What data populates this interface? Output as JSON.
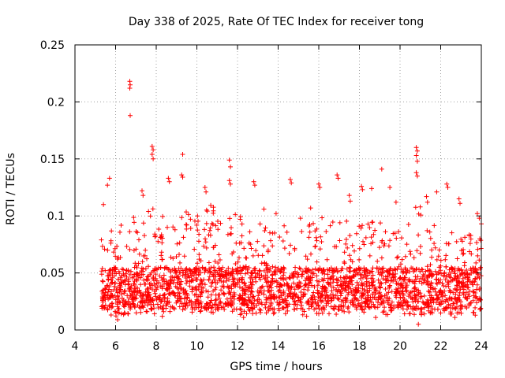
{
  "chart_data": {
    "type": "scatter",
    "title": "Day 338 of 2025, Rate Of TEC Index for receiver tong",
    "xlabel": "GPS time / hours",
    "ylabel": "ROTI / TECUs",
    "xlim": [
      4,
      24
    ],
    "ylim": [
      0,
      0.25
    ],
    "xticks": [
      4,
      6,
      8,
      10,
      12,
      14,
      16,
      18,
      20,
      22,
      24
    ],
    "yticks": [
      0,
      0.05,
      0.1,
      0.15,
      0.2,
      0.25
    ],
    "xtick_labels": [
      "4",
      "6",
      "8",
      "10",
      "12",
      "14",
      "16",
      "18",
      "20",
      "22",
      "24"
    ],
    "ytick_labels": [
      "0",
      "0.05",
      "0.1",
      "0.15",
      "0.2",
      "0.25"
    ],
    "grid": true,
    "marker": "+",
    "color": "#ff0000",
    "data_range_x": [
      5.3,
      24.0
    ],
    "series": [
      {
        "name": "ROTI",
        "points": [
          [
            6.7,
            0.218
          ],
          [
            6.72,
            0.215
          ],
          [
            6.7,
            0.212
          ],
          [
            6.72,
            0.188
          ],
          [
            7.8,
            0.161
          ],
          [
            7.85,
            0.158
          ],
          [
            7.8,
            0.154
          ],
          [
            7.85,
            0.15
          ],
          [
            9.3,
            0.154
          ],
          [
            9.25,
            0.136
          ],
          [
            9.3,
            0.134
          ],
          [
            11.6,
            0.149
          ],
          [
            11.65,
            0.143
          ],
          [
            11.6,
            0.131
          ],
          [
            11.65,
            0.128
          ],
          [
            20.8,
            0.16
          ],
          [
            20.85,
            0.157
          ],
          [
            20.8,
            0.153
          ],
          [
            20.85,
            0.148
          ],
          [
            20.8,
            0.138
          ],
          [
            20.85,
            0.135
          ],
          [
            19.1,
            0.141
          ],
          [
            5.7,
            0.133
          ],
          [
            5.6,
            0.127
          ],
          [
            8.6,
            0.133
          ],
          [
            8.65,
            0.13
          ],
          [
            12.8,
            0.13
          ],
          [
            12.85,
            0.127
          ],
          [
            14.6,
            0.132
          ],
          [
            14.65,
            0.129
          ],
          [
            16.0,
            0.128
          ],
          [
            16.05,
            0.125
          ],
          [
            16.9,
            0.136
          ],
          [
            16.95,
            0.133
          ],
          [
            18.1,
            0.126
          ],
          [
            18.15,
            0.123
          ],
          [
            18.6,
            0.124
          ],
          [
            19.5,
            0.125
          ],
          [
            21.8,
            0.121
          ],
          [
            22.3,
            0.128
          ],
          [
            22.35,
            0.125
          ],
          [
            22.9,
            0.115
          ],
          [
            22.95,
            0.111
          ],
          [
            23.8,
            0.102
          ],
          [
            23.9,
            0.098
          ],
          [
            7.3,
            0.122
          ],
          [
            7.35,
            0.118
          ],
          [
            10.4,
            0.125
          ],
          [
            10.45,
            0.121
          ],
          [
            13.3,
            0.106
          ],
          [
            13.9,
            0.102
          ],
          [
            15.1,
            0.098
          ],
          [
            15.6,
            0.107
          ],
          [
            17.5,
            0.118
          ],
          [
            17.55,
            0.113
          ],
          [
            19.8,
            0.112
          ],
          [
            21.3,
            0.117
          ],
          [
            21.35,
            0.112
          ],
          [
            5.3,
            0.079
          ],
          [
            5.4,
            0.11
          ],
          [
            24.0,
            0.093
          ],
          [
            20.9,
            0.005
          ],
          [
            6.1,
            0.009
          ],
          [
            8.3,
            0.012
          ],
          [
            12.3,
            0.011
          ],
          [
            15.4,
            0.012
          ],
          [
            18.8,
            0.011
          ],
          [
            22.7,
            0.011
          ],
          [
            23.7,
            0.013
          ]
        ],
        "envelope": [
          [
            5.3,
            0.085,
            0.015
          ],
          [
            5.7,
            0.095,
            0.013
          ],
          [
            6.1,
            0.09,
            0.012
          ],
          [
            6.5,
            0.105,
            0.014
          ],
          [
            6.9,
            0.1,
            0.014
          ],
          [
            7.3,
            0.105,
            0.015
          ],
          [
            7.7,
            0.11,
            0.014
          ],
          [
            8.1,
            0.1,
            0.013
          ],
          [
            8.5,
            0.105,
            0.013
          ],
          [
            8.9,
            0.1,
            0.014
          ],
          [
            9.3,
            0.115,
            0.014
          ],
          [
            9.7,
            0.1,
            0.015
          ],
          [
            10.1,
            0.1,
            0.016
          ],
          [
            10.5,
            0.11,
            0.016
          ],
          [
            10.9,
            0.11,
            0.015
          ],
          [
            11.3,
            0.105,
            0.015
          ],
          [
            11.7,
            0.115,
            0.015
          ],
          [
            12.1,
            0.1,
            0.013
          ],
          [
            12.5,
            0.095,
            0.014
          ],
          [
            12.9,
            0.1,
            0.014
          ],
          [
            13.3,
            0.095,
            0.014
          ],
          [
            13.7,
            0.09,
            0.014
          ],
          [
            14.1,
            0.085,
            0.014
          ],
          [
            14.5,
            0.1,
            0.014
          ],
          [
            14.9,
            0.09,
            0.014
          ],
          [
            15.3,
            0.09,
            0.013
          ],
          [
            15.7,
            0.095,
            0.014
          ],
          [
            16.1,
            0.105,
            0.014
          ],
          [
            16.5,
            0.09,
            0.014
          ],
          [
            16.9,
            0.105,
            0.013
          ],
          [
            17.3,
            0.095,
            0.013
          ],
          [
            17.7,
            0.1,
            0.013
          ],
          [
            18.1,
            0.105,
            0.013
          ],
          [
            18.5,
            0.095,
            0.013
          ],
          [
            18.9,
            0.095,
            0.013
          ],
          [
            19.3,
            0.1,
            0.013
          ],
          [
            19.7,
            0.09,
            0.013
          ],
          [
            20.1,
            0.085,
            0.014
          ],
          [
            20.5,
            0.095,
            0.012
          ],
          [
            20.9,
            0.115,
            0.012
          ],
          [
            21.3,
            0.1,
            0.013
          ],
          [
            21.7,
            0.095,
            0.014
          ],
          [
            22.1,
            0.09,
            0.014
          ],
          [
            22.5,
            0.09,
            0.014
          ],
          [
            22.9,
            0.085,
            0.014
          ],
          [
            23.3,
            0.085,
            0.015
          ],
          [
            23.7,
            0.09,
            0.015
          ],
          [
            24.0,
            0.095,
            0.015
          ]
        ],
        "core_band": [
          0.018,
          0.055
        ]
      }
    ]
  }
}
